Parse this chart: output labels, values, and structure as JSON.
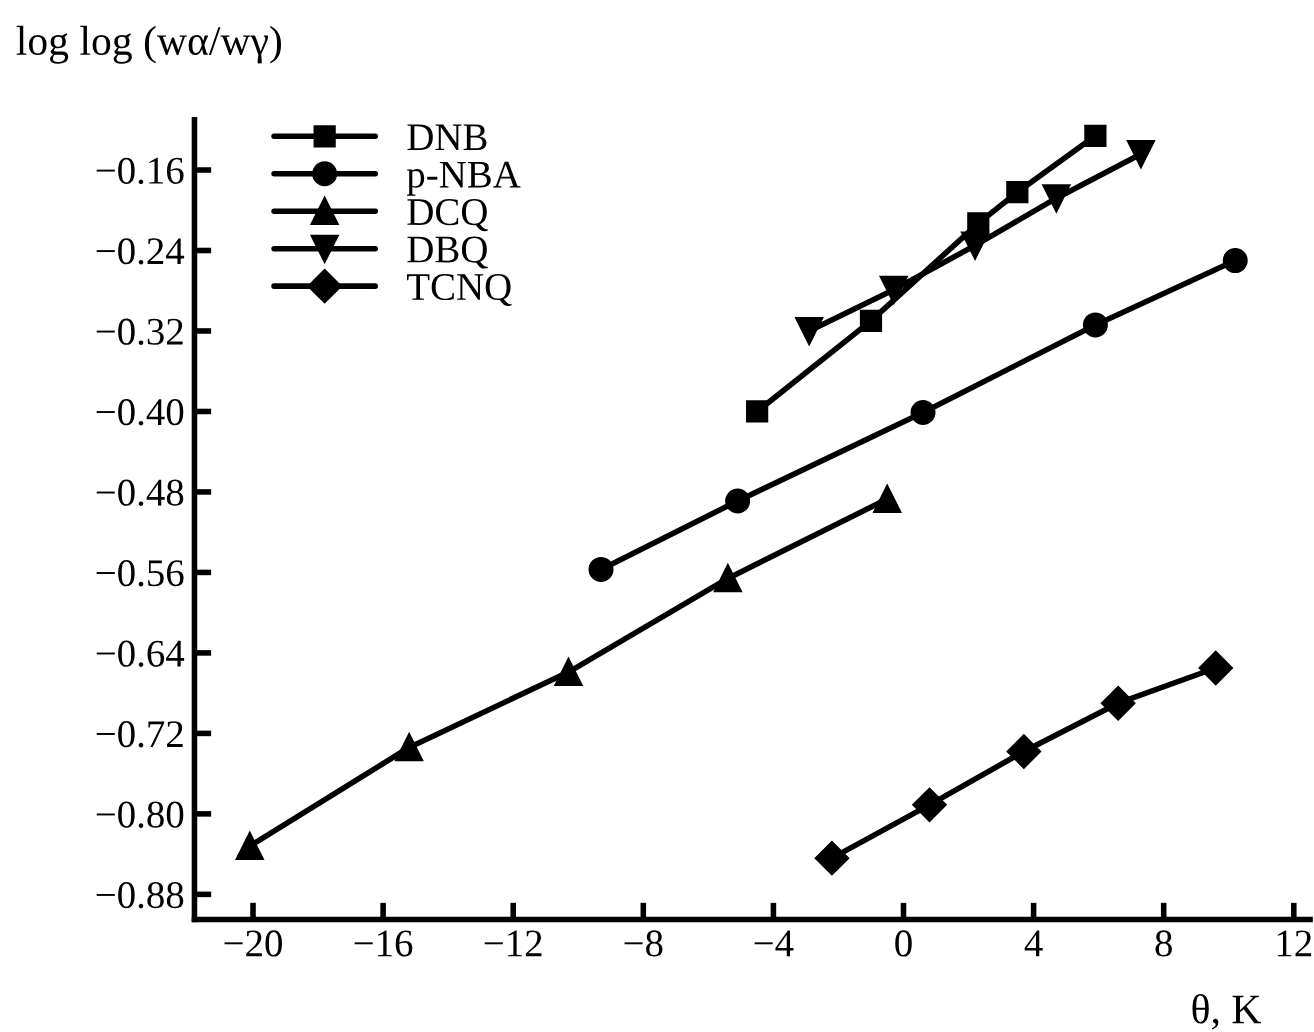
{
  "chart_data": {
    "type": "line",
    "ylabel": "log log (wα/wγ)",
    "xlabel": "θ, K",
    "xlim": [
      -21.8,
      12.5
    ],
    "ylim": [
      -0.905,
      -0.11
    ],
    "xticks": [
      {
        "value": -20,
        "label": "−20"
      },
      {
        "value": -16,
        "label": "−16"
      },
      {
        "value": -12,
        "label": "−12"
      },
      {
        "value": -8,
        "label": "−8"
      },
      {
        "value": -4,
        "label": "−4"
      },
      0,
      4,
      8,
      12
    ],
    "yticks": [
      {
        "value": -0.16,
        "label": "−0.16"
      },
      {
        "value": -0.24,
        "label": "−0.24"
      },
      {
        "value": -0.32,
        "label": "−0.32"
      },
      {
        "value": -0.4,
        "label": "−0.40"
      },
      {
        "value": -0.48,
        "label": "−0.48"
      },
      {
        "value": -0.56,
        "label": "−0.56"
      },
      {
        "value": -0.64,
        "label": "−0.64"
      },
      {
        "value": -0.72,
        "label": "−0.72"
      },
      {
        "value": -0.8,
        "label": "−0.80"
      },
      {
        "value": -0.88,
        "label": "−0.88"
      }
    ],
    "grid": false,
    "legend": "top left",
    "line_style": "solid",
    "series": [
      {
        "name": "DNB",
        "color": "#000000",
        "marker": "square",
        "x": [
          -4.5,
          -1.0,
          2.3,
          3.5,
          5.9
        ],
        "values": [
          -0.4,
          -0.31,
          -0.213,
          -0.182,
          -0.126
        ]
      },
      {
        "name": "p-NBA",
        "color": "#000000",
        "marker": "circle",
        "x": [
          -9.3,
          -5.1,
          0.6,
          5.9,
          10.2
        ],
        "values": [
          -0.557,
          -0.489,
          -0.401,
          -0.314,
          -0.25
        ]
      },
      {
        "name": "DCQ",
        "color": "#000000",
        "marker": "triangle",
        "x": [
          -20.1,
          -15.2,
          -10.3,
          -5.4,
          -0.5
        ],
        "values": [
          -0.832,
          -0.734,
          -0.659,
          -0.566,
          -0.487
        ]
      },
      {
        "name": "DBQ",
        "color": "#000000",
        "marker": "triangle_down",
        "x": [
          -2.9,
          -0.3,
          2.2,
          4.7,
          7.3
        ],
        "values": [
          -0.32,
          -0.279,
          -0.235,
          -0.188,
          -0.144
        ]
      },
      {
        "name": "TCNQ",
        "color": "#000000",
        "marker": "diamond",
        "x": [
          -2.2,
          0.8,
          3.7,
          6.6,
          9.6
        ],
        "values": [
          -0.844,
          -0.791,
          -0.738,
          -0.69,
          -0.655
        ]
      }
    ]
  }
}
